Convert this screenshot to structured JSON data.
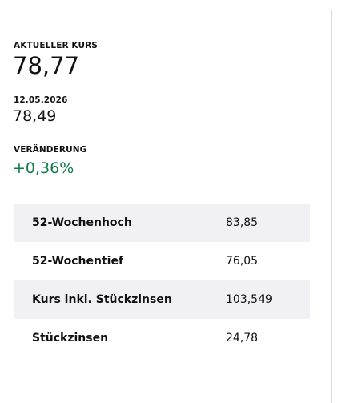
{
  "quote": {
    "label": "AKTUELLER KURS",
    "value": "78,77"
  },
  "previous": {
    "label": "12.05.2026",
    "value": "78,49"
  },
  "change": {
    "label": "VERÄNDERUNG",
    "value": "+0,36%"
  },
  "table": {
    "rows": [
      [
        "52-Wochenhoch",
        "83,85"
      ],
      [
        "52-Wochentief",
        "76,05"
      ],
      [
        "Kurs inkl. Stückzinsen",
        "103,549"
      ],
      [
        "Stückzinsen",
        "24,78"
      ]
    ]
  }
}
